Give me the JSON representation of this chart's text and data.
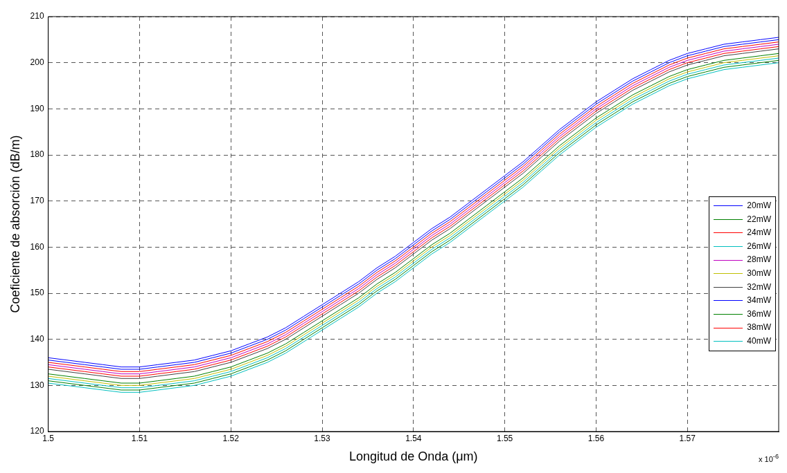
{
  "chart_data": {
    "type": "line",
    "xlabel": "Longitud de Onda (μm)",
    "ylabel": "Coeficiente de absorción (dB/m)",
    "annotations": [
      "x 10$^{-6}$"
    ],
    "x": [
      1.5,
      1.502,
      1.504,
      1.506,
      1.508,
      1.51,
      1.512,
      1.514,
      1.516,
      1.518,
      1.52,
      1.522,
      1.524,
      1.526,
      1.528,
      1.53,
      1.532,
      1.534,
      1.536,
      1.538,
      1.54,
      1.542,
      1.544,
      1.546,
      1.548,
      1.55,
      1.552,
      1.554,
      1.556,
      1.558,
      1.56,
      1.562,
      1.564,
      1.566,
      1.568,
      1.57,
      1.572,
      1.574,
      1.576,
      1.578,
      1.58
    ],
    "xlim": [
      1.5,
      1.58
    ],
    "xticks": [
      1.5,
      1.51,
      1.52,
      1.53,
      1.54,
      1.55,
      1.56,
      1.57
    ],
    "ylim": [
      120,
      210
    ],
    "yticks": [
      120,
      130,
      140,
      150,
      160,
      170,
      180,
      190,
      200,
      210
    ],
    "grid": true,
    "legend": "right",
    "line_style": "solid",
    "series": [
      {
        "name": "20mW",
        "color": "#0000ff",
        "values": [
          135.5,
          135,
          134.5,
          134,
          133.5,
          133.5,
          134,
          134.5,
          135,
          136,
          137,
          138.5,
          140,
          142,
          144.5,
          147,
          149.5,
          152,
          155,
          157.5,
          160.5,
          163.5,
          166,
          169,
          172,
          175,
          178,
          181.5,
          185,
          188,
          191,
          193.5,
          196,
          198,
          200,
          201.5,
          202.5,
          203.5,
          204,
          204.5,
          205
        ]
      },
      {
        "name": "22mW",
        "color": "#008000",
        "values": [
          131,
          130.5,
          130,
          129.5,
          129,
          129,
          129.5,
          130,
          130.5,
          131.5,
          132.5,
          134,
          135.5,
          137.5,
          140,
          142.5,
          145,
          147.5,
          150.5,
          153,
          156,
          159,
          161.5,
          164.5,
          167.5,
          170.5,
          173.5,
          177,
          180.5,
          183.5,
          186.5,
          189,
          191.5,
          193.5,
          195.5,
          197,
          198,
          199,
          199.5,
          200,
          200.5
        ]
      },
      {
        "name": "24mW",
        "color": "#ff0000",
        "values": [
          135,
          134.5,
          134,
          133.5,
          133,
          133,
          133.5,
          134,
          134.5,
          135.5,
          136.5,
          138,
          139.5,
          141.5,
          144,
          146.5,
          149,
          151.5,
          154.5,
          157,
          160,
          163,
          165.5,
          168.5,
          171.5,
          174.5,
          177.5,
          181,
          184.5,
          187.5,
          190.5,
          193,
          195.5,
          197.5,
          199.5,
          201,
          202,
          203,
          203.5,
          204,
          204.5
        ]
      },
      {
        "name": "26mW",
        "color": "#00bfbf",
        "values": [
          131.5,
          131,
          130.5,
          130,
          129.5,
          129.5,
          130,
          130.5,
          131,
          132,
          133,
          134.5,
          136,
          138,
          140.5,
          143,
          145.5,
          148,
          151,
          153.5,
          156.5,
          159.5,
          162,
          165,
          168,
          171,
          174,
          177.5,
          181,
          184,
          187,
          189.5,
          192,
          194,
          196,
          197.5,
          198.5,
          199.5,
          200,
          200.5,
          201
        ]
      },
      {
        "name": "28mW",
        "color": "#bf00bf",
        "values": [
          134.5,
          134,
          133.5,
          133,
          132.5,
          132.5,
          133,
          133.5,
          134,
          135,
          136,
          137.5,
          139,
          141,
          143.5,
          146,
          148.5,
          151,
          154,
          156.5,
          159.5,
          162.5,
          165,
          168,
          171,
          174,
          177,
          180.5,
          184,
          187,
          190,
          192.5,
          195,
          197,
          199,
          200.5,
          201.5,
          202.5,
          203,
          203.5,
          204
        ]
      },
      {
        "name": "30mW",
        "color": "#bfbf00",
        "values": [
          132,
          131.5,
          131,
          130.5,
          130,
          130,
          130.5,
          131,
          131.5,
          132.5,
          133.5,
          135,
          136.5,
          138.5,
          141,
          143.5,
          146,
          148.5,
          151.5,
          154,
          157,
          160,
          162.5,
          165.5,
          168.5,
          171.5,
          174.5,
          178,
          181.5,
          184.5,
          187.5,
          190,
          192.5,
          194.5,
          196.5,
          198,
          199,
          200,
          200.5,
          201,
          201.5
        ]
      },
      {
        "name": "32mW",
        "color": "#404040",
        "values": [
          133.5,
          133,
          132.5,
          132,
          131.5,
          131.5,
          132,
          132.5,
          133,
          134,
          135,
          136.5,
          138,
          140,
          142.5,
          145,
          147.5,
          150,
          153,
          155.5,
          158.5,
          161.5,
          164,
          167,
          170,
          173,
          176,
          179.5,
          183,
          186,
          189,
          191.5,
          194,
          196,
          198,
          199.5,
          200.5,
          201.5,
          202,
          202.5,
          203
        ]
      },
      {
        "name": "34mW",
        "color": "#0000ff",
        "values": [
          136,
          135.5,
          135,
          134.5,
          134,
          134,
          134.5,
          135,
          135.5,
          136.5,
          137.5,
          139,
          140.5,
          142.5,
          145,
          147.5,
          150,
          152.5,
          155.5,
          158,
          161,
          164,
          166.5,
          169.5,
          172.5,
          175.5,
          178.5,
          182,
          185.5,
          188.5,
          191.5,
          194,
          196.5,
          198.5,
          200.5,
          202,
          203,
          204,
          204.5,
          205,
          205.5
        ]
      },
      {
        "name": "36mW",
        "color": "#008000",
        "values": [
          132.5,
          132,
          131.5,
          131,
          130.5,
          130.5,
          131,
          131.5,
          132,
          133,
          134,
          135.5,
          137,
          139,
          141.5,
          144,
          146.5,
          149,
          152,
          154.5,
          157.5,
          160.5,
          163,
          166,
          169,
          172,
          175,
          178.5,
          182,
          185,
          188,
          190.5,
          193,
          195,
          197,
          198.5,
          199.5,
          200.5,
          201,
          201.5,
          202
        ]
      },
      {
        "name": "38mW",
        "color": "#ff0000",
        "values": [
          134,
          133.5,
          133,
          132.5,
          132,
          132,
          132.5,
          133,
          133.5,
          134.5,
          135.5,
          137,
          138.5,
          140.5,
          143,
          145.5,
          148,
          150.5,
          153.5,
          156,
          159,
          162,
          164.5,
          167.5,
          170.5,
          173.5,
          176.5,
          180,
          183.5,
          186.5,
          189.5,
          192,
          194.5,
          196.5,
          198.5,
          200,
          201,
          202,
          202.5,
          203,
          203.5
        ]
      },
      {
        "name": "40mW",
        "color": "#00bfbf",
        "values": [
          130.5,
          130,
          129.5,
          129,
          128.5,
          128.5,
          129,
          129.5,
          130,
          131,
          132,
          133.5,
          135,
          137,
          139.5,
          142,
          144.5,
          147,
          150,
          152.5,
          155.5,
          158.5,
          161,
          164,
          167,
          170,
          173,
          176.5,
          180,
          183,
          186,
          188.5,
          191,
          193,
          195,
          196.5,
          197.5,
          198.5,
          199,
          199.5,
          200
        ]
      }
    ]
  }
}
